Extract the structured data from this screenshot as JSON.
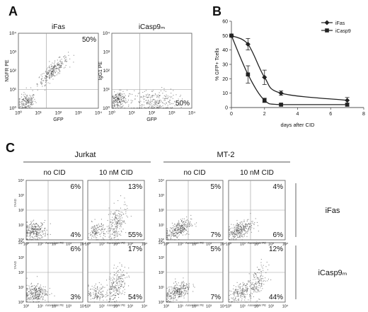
{
  "panel_labels": [
    "A",
    "B",
    "C"
  ],
  "chart_data": [
    {
      "type": "scatter",
      "panel": "A",
      "title": "iFas",
      "xlabel": "GFP",
      "ylabel": "NGFR PE",
      "ticks": [
        "10⁰",
        "10¹",
        "10²",
        "10³",
        "10⁴"
      ],
      "quadrant_labels": {
        "upper_right": "50%"
      },
      "populations": [
        {
          "cx": 0.4,
          "cy": 0.35,
          "count": 170,
          "spread": 0.22,
          "corr": 0.2
        },
        {
          "cx": 1.7,
          "cy": 2.0,
          "count": 260,
          "spread": 0.38,
          "corr": 0.85
        }
      ]
    },
    {
      "type": "scatter",
      "panel": "A",
      "title": "iCasp9ₘ",
      "xlabel": "GFP",
      "ylabel": "IgG1 PE",
      "ticks": [
        "10⁰",
        "10¹",
        "10²",
        "10³",
        "10⁴"
      ],
      "quadrant_labels": {
        "lower_right": "50%"
      },
      "populations": [
        {
          "cx": 0.3,
          "cy": 0.45,
          "count": 200,
          "spread": 0.22,
          "corr": 0.2
        },
        {
          "cx": 2.1,
          "cy": 0.35,
          "count": 260,
          "spread": 0.33,
          "corr": 0.05,
          "sx": 1.8
        }
      ]
    },
    {
      "type": "line",
      "panel": "B",
      "xlabel": "days after CID",
      "ylabel": "% GFP+ Tcells",
      "xlim": [
        0,
        8
      ],
      "ylim": [
        0,
        60
      ],
      "xticks": [
        0,
        2,
        4,
        6,
        8
      ],
      "yticks": [
        0,
        10,
        20,
        30,
        40,
        50,
        60
      ],
      "series": [
        {
          "name": "iFas",
          "marker": "diamond",
          "x": [
            0,
            1,
            2,
            3,
            7
          ],
          "y": [
            50,
            44,
            21,
            10,
            5
          ],
          "err": [
            1,
            4,
            5,
            1.5,
            2
          ]
        },
        {
          "name": "iCasp9",
          "marker": "square",
          "x": [
            0,
            1,
            2,
            3,
            7
          ],
          "y": [
            50,
            23,
            5,
            2,
            2
          ],
          "err": [
            1,
            6,
            1.5,
            0.7,
            1
          ]
        }
      ]
    },
    {
      "type": "scatter",
      "panel": "C",
      "cell_line": "Jurkat",
      "condition": "no CID",
      "construct": "iFas",
      "xlabel": "Annexin-V PE",
      "ylabel": "7AAD",
      "quadrant_labels": {
        "upper_right": "6%",
        "lower_right": "4%"
      },
      "populations": [
        {
          "cx": 0.6,
          "cy": 0.6,
          "count": 260,
          "spread": 0.32,
          "corr": 0.15,
          "sx": 1.3
        }
      ]
    },
    {
      "type": "scatter",
      "panel": "C",
      "cell_line": "Jurkat",
      "condition": "10 nM CID",
      "construct": "iFas",
      "xlabel": "Annexin-V PE",
      "ylabel": "7AAD",
      "quadrant_labels": {
        "upper_right": "13%",
        "lower_right": "55%"
      },
      "populations": [
        {
          "cx": 0.6,
          "cy": 0.6,
          "count": 120,
          "spread": 0.3,
          "corr": 0.1
        },
        {
          "cx": 2.0,
          "cy": 1.1,
          "count": 200,
          "spread": 0.35,
          "corr": 0.4,
          "sy": 1.8
        }
      ]
    },
    {
      "type": "scatter",
      "panel": "C",
      "cell_line": "MT-2",
      "condition": "no CID",
      "construct": "iFas",
      "xlabel": "Annexin-V PE",
      "ylabel": "7AAD",
      "quadrant_labels": {
        "upper_right": "5%",
        "lower_right": "7%"
      },
      "populations": [
        {
          "cx": 0.8,
          "cy": 0.7,
          "count": 280,
          "spread": 0.35,
          "corr": 0.55,
          "sx": 1.3
        }
      ]
    },
    {
      "type": "scatter",
      "panel": "C",
      "cell_line": "MT-2",
      "condition": "10 nM CID",
      "construct": "iFas",
      "xlabel": "Annexin-V PE",
      "ylabel": "7AAD",
      "quadrant_labels": {
        "upper_right": "4%",
        "lower_right": "6%"
      },
      "populations": [
        {
          "cx": 0.8,
          "cy": 0.7,
          "count": 280,
          "spread": 0.35,
          "corr": 0.55,
          "sx": 1.3
        }
      ]
    },
    {
      "type": "scatter",
      "panel": "C",
      "cell_line": "Jurkat",
      "condition": "no CID",
      "construct": "iCasp9ₘ",
      "xlabel": "Annexin-V PE",
      "ylabel": "7AAD",
      "quadrant_labels": {
        "upper_right": "6%",
        "lower_right": "3%"
      },
      "populations": [
        {
          "cx": 0.6,
          "cy": 0.6,
          "count": 260,
          "spread": 0.32,
          "corr": 0.15,
          "sx": 1.3
        }
      ]
    },
    {
      "type": "scatter",
      "panel": "C",
      "cell_line": "Jurkat",
      "condition": "10 nM CID",
      "construct": "iCasp9ₘ",
      "xlabel": "Annexin-V PE",
      "ylabel": "7AAD",
      "quadrant_labels": {
        "upper_right": "17%",
        "lower_right": "54%"
      },
      "populations": [
        {
          "cx": 0.6,
          "cy": 0.6,
          "count": 110,
          "spread": 0.3,
          "corr": 0.1
        },
        {
          "cx": 2.0,
          "cy": 1.2,
          "count": 220,
          "spread": 0.35,
          "corr": 0.4,
          "sy": 1.8
        }
      ]
    },
    {
      "type": "scatter",
      "panel": "C",
      "cell_line": "MT-2",
      "condition": "no CID",
      "construct": "iCasp9ₘ",
      "xlabel": "Annexin-V PE",
      "ylabel": "7AAD",
      "quadrant_labels": {
        "upper_right": "5%",
        "lower_right": "7%"
      },
      "populations": [
        {
          "cx": 0.8,
          "cy": 0.7,
          "count": 280,
          "spread": 0.35,
          "corr": 0.55,
          "sx": 1.3
        }
      ]
    },
    {
      "type": "scatter",
      "panel": "C",
      "cell_line": "MT-2",
      "condition": "10 nM CID",
      "construct": "iCasp9ₘ",
      "xlabel": "Annexin-V PE",
      "ylabel": "7AAD",
      "quadrant_labels": {
        "upper_right": "12%",
        "lower_right": "44%"
      },
      "populations": [
        {
          "cx": 0.8,
          "cy": 0.7,
          "count": 170,
          "spread": 0.33,
          "corr": 0.5,
          "sx": 1.3
        },
        {
          "cx": 2.0,
          "cy": 1.3,
          "count": 150,
          "spread": 0.35,
          "corr": 0.4,
          "sy": 1.6
        }
      ]
    }
  ],
  "panel_c": {
    "cell_lines": [
      "Jurkat",
      "MT-2"
    ],
    "conditions": [
      "no CID",
      "10 nM CID",
      "no CID",
      "10 nM CID"
    ],
    "constructs": [
      "iFas",
      "iCasp9ₘ"
    ],
    "xlabel": "Annexin-V PE",
    "ylabel": "7AAD",
    "ticks": [
      "10⁰",
      "10¹",
      "10²",
      "10³",
      "10⁴"
    ]
  },
  "colors": {
    "axis": "#555555",
    "dots": "#3a3a3a",
    "line": "#222222",
    "text": "#111111"
  }
}
